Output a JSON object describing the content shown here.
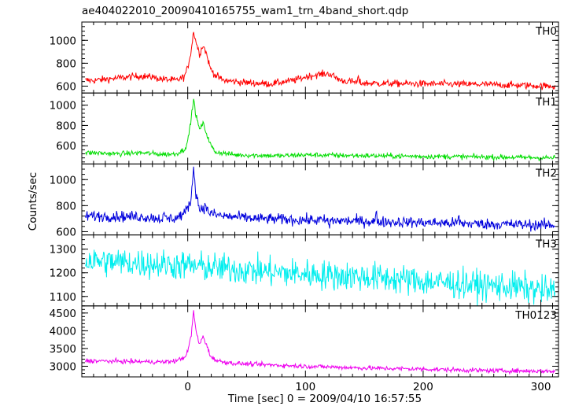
{
  "chart_data": {
    "type": "line",
    "title": "ae404022010_20090410165755_wam1_trn_4band_short.qdp",
    "xlabel": "Time [sec] 0 = 2009/04/10 16:57:55",
    "ylabel": "Counts/sec",
    "xlim": [
      -90,
      315
    ],
    "x_ticks": [
      0,
      100,
      200,
      300
    ],
    "x_tick_labels": [
      "0",
      "100",
      "200",
      "300"
    ],
    "shared_x": true,
    "grid": false,
    "panels": [
      {
        "name": "TH0",
        "color": "#ff0000",
        "ylim": [
          540,
          1160
        ],
        "y_ticks": [
          600,
          800,
          1000
        ],
        "y_tick_labels": [
          "600",
          "800",
          "1000"
        ],
        "noise": 22,
        "spikes": [
          [
            -30,
            15
          ],
          [
            145,
            35
          ]
        ],
        "profile": [
          [
            -80,
            650
          ],
          [
            -60,
            670
          ],
          [
            -40,
            690
          ],
          [
            -20,
            660
          ],
          [
            -10,
            650
          ],
          [
            -3,
            680
          ],
          [
            0,
            760
          ],
          [
            3,
            920
          ],
          [
            5,
            1080
          ],
          [
            7,
            990
          ],
          [
            10,
            880
          ],
          [
            13,
            960
          ],
          [
            16,
            880
          ],
          [
            19,
            760
          ],
          [
            23,
            700
          ],
          [
            30,
            650
          ],
          [
            50,
            630
          ],
          [
            70,
            620
          ],
          [
            90,
            650
          ],
          [
            100,
            680
          ],
          [
            110,
            700
          ],
          [
            120,
            710
          ],
          [
            130,
            650
          ],
          [
            150,
            625
          ],
          [
            200,
            620
          ],
          [
            250,
            615
          ],
          [
            310,
            600
          ]
        ]
      },
      {
        "name": "TH1",
        "color": "#00dd00",
        "ylim": [
          420,
          1120
        ],
        "y_ticks": [
          600,
          800,
          1000
        ],
        "y_tick_labels": [
          "600",
          "800",
          "1000"
        ],
        "noise": 18,
        "spikes": [],
        "profile": [
          [
            -80,
            530
          ],
          [
            -60,
            520
          ],
          [
            -40,
            530
          ],
          [
            -20,
            515
          ],
          [
            -10,
            520
          ],
          [
            -3,
            560
          ],
          [
            0,
            640
          ],
          [
            3,
            880
          ],
          [
            5,
            1060
          ],
          [
            7,
            900
          ],
          [
            10,
            760
          ],
          [
            13,
            820
          ],
          [
            16,
            720
          ],
          [
            19,
            620
          ],
          [
            23,
            540
          ],
          [
            40,
            510
          ],
          [
            80,
            500
          ],
          [
            100,
            510
          ],
          [
            130,
            505
          ],
          [
            200,
            495
          ],
          [
            250,
            490
          ],
          [
            310,
            480
          ]
        ]
      },
      {
        "name": "TH2",
        "color": "#0000dd",
        "ylim": [
          575,
          1120
        ],
        "y_ticks": [
          600,
          800,
          1000
        ],
        "y_tick_labels": [
          "600",
          "800",
          "1000"
        ],
        "noise": 30,
        "spikes": [
          [
            -20,
            20
          ],
          [
            120,
            -40
          ],
          [
            160,
            45
          ],
          [
            230,
            40
          ]
        ],
        "profile": [
          [
            -80,
            720
          ],
          [
            -40,
            715
          ],
          [
            -20,
            700
          ],
          [
            -10,
            705
          ],
          [
            -3,
            740
          ],
          [
            0,
            780
          ],
          [
            3,
            860
          ],
          [
            5,
            1100
          ],
          [
            7,
            900
          ],
          [
            10,
            770
          ],
          [
            13,
            790
          ],
          [
            16,
            780
          ],
          [
            19,
            740
          ],
          [
            30,
            720
          ],
          [
            60,
            700
          ],
          [
            100,
            690
          ],
          [
            150,
            680
          ],
          [
            200,
            670
          ],
          [
            250,
            660
          ],
          [
            310,
            650
          ]
        ]
      },
      {
        "name": "TH3",
        "color": "#00eeee",
        "ylim": [
          1060,
          1360
        ],
        "y_ticks": [
          1100,
          1200,
          1300
        ],
        "y_tick_labels": [
          "1100",
          "1200",
          "1300"
        ],
        "noise": 45,
        "spikes": [],
        "profile": [
          [
            -80,
            1250
          ],
          [
            -40,
            1240
          ],
          [
            0,
            1230
          ],
          [
            40,
            1215
          ],
          [
            80,
            1200
          ],
          [
            120,
            1190
          ],
          [
            160,
            1180
          ],
          [
            200,
            1165
          ],
          [
            240,
            1150
          ],
          [
            280,
            1140
          ],
          [
            310,
            1120
          ]
        ]
      },
      {
        "name": "TH0123",
        "color": "#ee00ee",
        "ylim": [
          2700,
          4700
        ],
        "y_ticks": [
          3000,
          3500,
          4000,
          4500
        ],
        "y_tick_labels": [
          "3000",
          "3500",
          "4000",
          "4500"
        ],
        "noise": 45,
        "spikes": [],
        "profile": [
          [
            -80,
            3150
          ],
          [
            -40,
            3130
          ],
          [
            -20,
            3120
          ],
          [
            -10,
            3150
          ],
          [
            -3,
            3250
          ],
          [
            0,
            3400
          ],
          [
            3,
            3900
          ],
          [
            5,
            4550
          ],
          [
            7,
            4000
          ],
          [
            10,
            3600
          ],
          [
            13,
            3850
          ],
          [
            16,
            3600
          ],
          [
            19,
            3300
          ],
          [
            25,
            3150
          ],
          [
            40,
            3080
          ],
          [
            60,
            3050
          ],
          [
            100,
            3000
          ],
          [
            150,
            2950
          ],
          [
            200,
            2920
          ],
          [
            250,
            2880
          ],
          [
            310,
            2860
          ]
        ]
      }
    ]
  }
}
